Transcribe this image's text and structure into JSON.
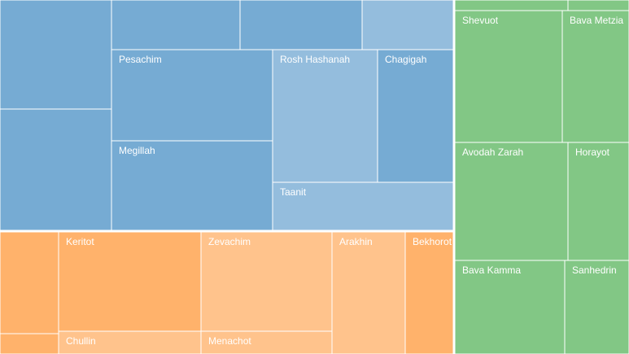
{
  "chart_data": {
    "type": "treemap",
    "colors": {
      "Moed": "#76abd3",
      "Kodashim": "#ffb26b",
      "Nezikin": "#82c785"
    },
    "tiles": [
      {
        "name": "",
        "group": "Moed",
        "shade": "dark"
      },
      {
        "name": "",
        "group": "Moed",
        "shade": "dark"
      },
      {
        "name": "",
        "group": "Moed",
        "shade": "dark"
      },
      {
        "name": "",
        "group": "Moed",
        "shade": "dark"
      },
      {
        "name": "",
        "group": "Moed",
        "shade": "light"
      },
      {
        "name": "Pesachim",
        "group": "Moed",
        "shade": "dark"
      },
      {
        "name": "Megillah",
        "group": "Moed",
        "shade": "dark"
      },
      {
        "name": "Rosh Hashanah",
        "group": "Moed",
        "shade": "light"
      },
      {
        "name": "Chagigah",
        "group": "Moed",
        "shade": "dark"
      },
      {
        "name": "Taanit",
        "group": "Moed",
        "shade": "light"
      },
      {
        "name": "",
        "group": "Kodashim",
        "shade": "dark"
      },
      {
        "name": "",
        "group": "Kodashim",
        "shade": "dark"
      },
      {
        "name": "Keritot",
        "group": "Kodashim",
        "shade": "dark"
      },
      {
        "name": "Chullin",
        "group": "Kodashim",
        "shade": "light"
      },
      {
        "name": "Zevachim",
        "group": "Kodashim",
        "shade": "light"
      },
      {
        "name": "Menachot",
        "group": "Kodashim",
        "shade": "light"
      },
      {
        "name": "Arakhin",
        "group": "Kodashim",
        "shade": "light"
      },
      {
        "name": "Bekhorot",
        "group": "Kodashim",
        "shade": "dark"
      },
      {
        "name": "",
        "group": "Nezikin",
        "shade": "dark"
      },
      {
        "name": "",
        "group": "Nezikin",
        "shade": "dark"
      },
      {
        "name": "Shevuot",
        "group": "Nezikin",
        "shade": "dark"
      },
      {
        "name": "Bava Metzia",
        "group": "Nezikin",
        "shade": "dark"
      },
      {
        "name": "Avodah Zarah",
        "group": "Nezikin",
        "shade": "dark"
      },
      {
        "name": "Horayot",
        "group": "Nezikin",
        "shade": "dark"
      },
      {
        "name": "Bava Kamma",
        "group": "Nezikin",
        "shade": "dark"
      },
      {
        "name": "Sanhedrin",
        "group": "Nezikin",
        "shade": "dark"
      }
    ]
  }
}
